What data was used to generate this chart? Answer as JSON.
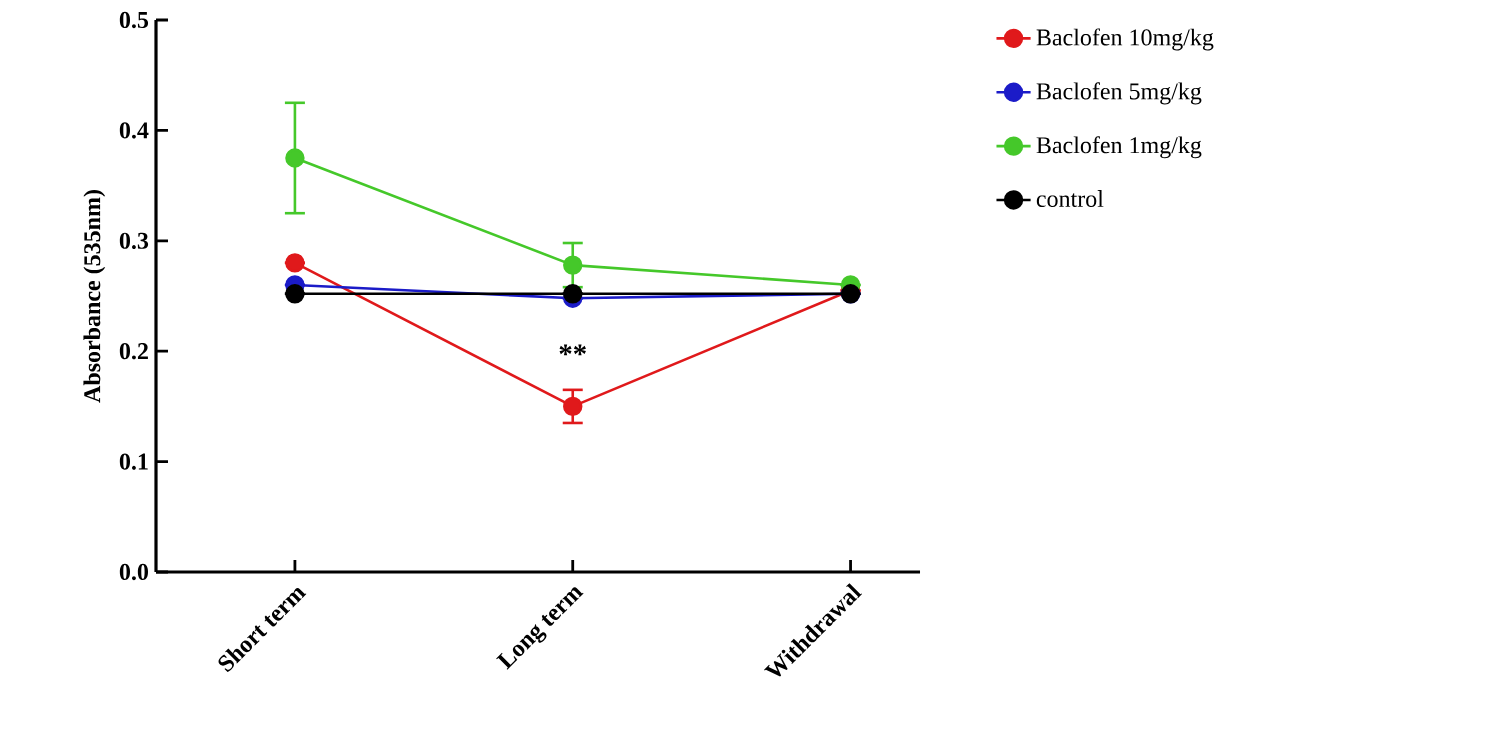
{
  "chart_data": {
    "type": "line",
    "ylabel": "Absorbance (535nm)",
    "categories": [
      "Short term",
      "Long term",
      "Withdrawal"
    ],
    "series": [
      {
        "name": "Baclofen 10mg/kg",
        "color": "#e0191b",
        "values": [
          0.28,
          0.15,
          0.255
        ],
        "errors": [
          null,
          0.015,
          null
        ]
      },
      {
        "name": "Baclofen 5mg/kg",
        "color": "#1b1bc8",
        "values": [
          0.26,
          0.248,
          0.252
        ],
        "errors": [
          null,
          null,
          null
        ]
      },
      {
        "name": "Baclofen 1mg/kg",
        "color": "#45c82a",
        "values": [
          0.375,
          0.278,
          0.26
        ],
        "errors": [
          0.05,
          0.02,
          null
        ]
      },
      {
        "name": "control",
        "color": "#000000",
        "values": [
          0.252,
          0.252,
          0.252
        ],
        "errors": [
          null,
          null,
          null
        ]
      }
    ],
    "ylim": [
      0,
      0.5
    ],
    "yticks": [
      {
        "value": 0,
        "label": "0.0"
      },
      0.1,
      0.2,
      0.3,
      0.4,
      0.5
    ],
    "annotations": [
      "**"
    ],
    "legend": "top right",
    "marker": "circle",
    "line_style": "solid",
    "grid": false
  }
}
